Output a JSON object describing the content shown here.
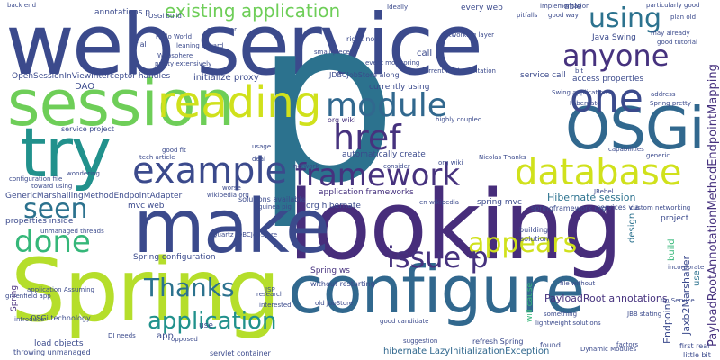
{
  "cloud": {
    "palette": {
      "dark_blue": "#3b4a8c",
      "indigo": "#46327e",
      "purple": "#472d7b",
      "teal": "#2c728e",
      "blue_teal": "#31688e",
      "green_teal": "#21918c",
      "green": "#35b779",
      "lime": "#6ece58",
      "yellow_green": "#b5de2b",
      "yellow": "#d0e11c"
    },
    "words": [
      "web service",
      "p",
      "looking",
      "Spring",
      "configure",
      "make",
      "session",
      "try",
      "OSGi",
      "reading",
      "example",
      "database",
      "framework",
      "one",
      "module",
      "href",
      "anyone",
      "using",
      "existing application",
      "appears",
      "issue p",
      "application",
      "Thanks",
      "done",
      "seen",
      "Hibernate session",
      "PayloadRoot annotations",
      "PayloadRootAnnotationMethodEndpointMapping",
      "Jaxb2Marshaller",
      "hibernate LazyInitializationException",
      "GenericMarshallingMethodEndpointAdapter",
      "OpenSessionInViewInterceptor handles",
      "properties inside",
      "automatically create",
      "application frameworks",
      "call p",
      "access properties",
      "Java Swing",
      "service call",
      "initialize proxy",
      "currently using",
      "JDBCJobStore along",
      "every web",
      "annotations p",
      "OSGi build",
      "Hello World",
      "Websphere",
      "leaning toward",
      "pretty extensively",
      "service project",
      "org wiki",
      "mvc web",
      "org hibernate",
      "services via",
      "spring mvc",
      "Spring ws",
      "OSGi technology",
      "load objects",
      "throwing unmanaged",
      "servlet container",
      "refresh Spring",
      "Dynamic Modules",
      "first real",
      "little bit",
      "good candidate",
      "building",
      "solution",
      "design",
      "project",
      "build",
      "JSP",
      "app",
      "use",
      "factors",
      "Endpoint",
      "found",
      "research",
      "interested",
      "application Assuming",
      "greenfield app",
      "Spring configuration",
      "Quartz JDBCJobStore",
      "unmanaged threads",
      "JBoss",
      "soon",
      "toward using",
      "wondering",
      "tech article",
      "deal",
      "DAO",
      "address",
      "Spring pretty",
      "Hibernate",
      "plan old",
      "good tutorial",
      "implementation",
      "particularly good",
      "able",
      "lazily loaded",
      "real OSGi",
      "right now",
      "small piece",
      "event monitoring",
      "current implementation",
      "Ideally",
      "piece",
      "need",
      "customer",
      "trial",
      "bit",
      "Dynamic",
      "incorporate",
      "something",
      "file without",
      "will cause",
      "suggestion",
      "lightweight solutions",
      "solutions available",
      "without restarting",
      "old JobStore",
      "wikipedia org",
      "en wikipedia",
      "Using CommonJ",
      "org wiki",
      "Nicolas Thanks",
      "consider",
      "network",
      "custom networking",
      "JRebel",
      "springframework org",
      "Swing applications",
      "highly coupled",
      "networking layer",
      "usage",
      "good fit",
      "configuration file",
      "guinea pig",
      "worse",
      "tm Service",
      "JBB stating",
      "David Thanks",
      "capabilities",
      "generic",
      "may already",
      "pitfalls",
      "good way",
      "DI needs",
      "opposed",
      "replace",
      "whole thing",
      "introduce",
      "WS",
      "Spring",
      "container",
      "end",
      "get",
      "done",
      "back end",
      "far",
      "look",
      "entire",
      "OSGi ze",
      "Quartz"
    ]
  }
}
